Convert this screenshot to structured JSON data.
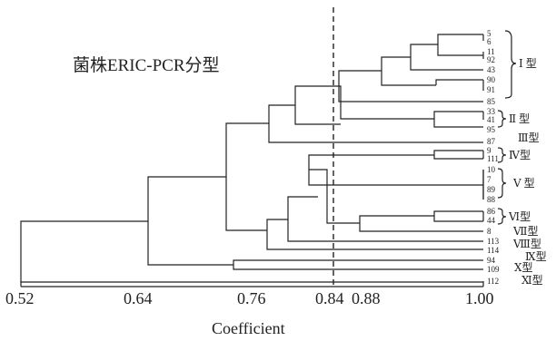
{
  "title": "菌株ERIC-PCR分型",
  "x_axis": {
    "label": "Coefficient",
    "ticks": [
      "0.52",
      "0.64",
      "0.76",
      "0.84",
      "0.88",
      "1.00"
    ]
  },
  "cutoff": 0.84,
  "leaves": [
    "5",
    "6",
    "11",
    "92",
    "43",
    "90",
    "91",
    "85",
    "33",
    "41",
    "95",
    "87",
    "9",
    "111",
    "10",
    "7",
    "89",
    "88",
    "86",
    "44",
    "8",
    "113",
    "114",
    "94",
    "109",
    "112"
  ],
  "groups": [
    "Ⅰ 型",
    "Ⅱ 型",
    "Ⅲ型",
    "Ⅳ型",
    "Ⅴ 型",
    "Ⅵ型",
    "Ⅶ型",
    "Ⅷ型",
    "Ⅸ型",
    "Ⅹ型",
    "Ⅺ型"
  ]
}
